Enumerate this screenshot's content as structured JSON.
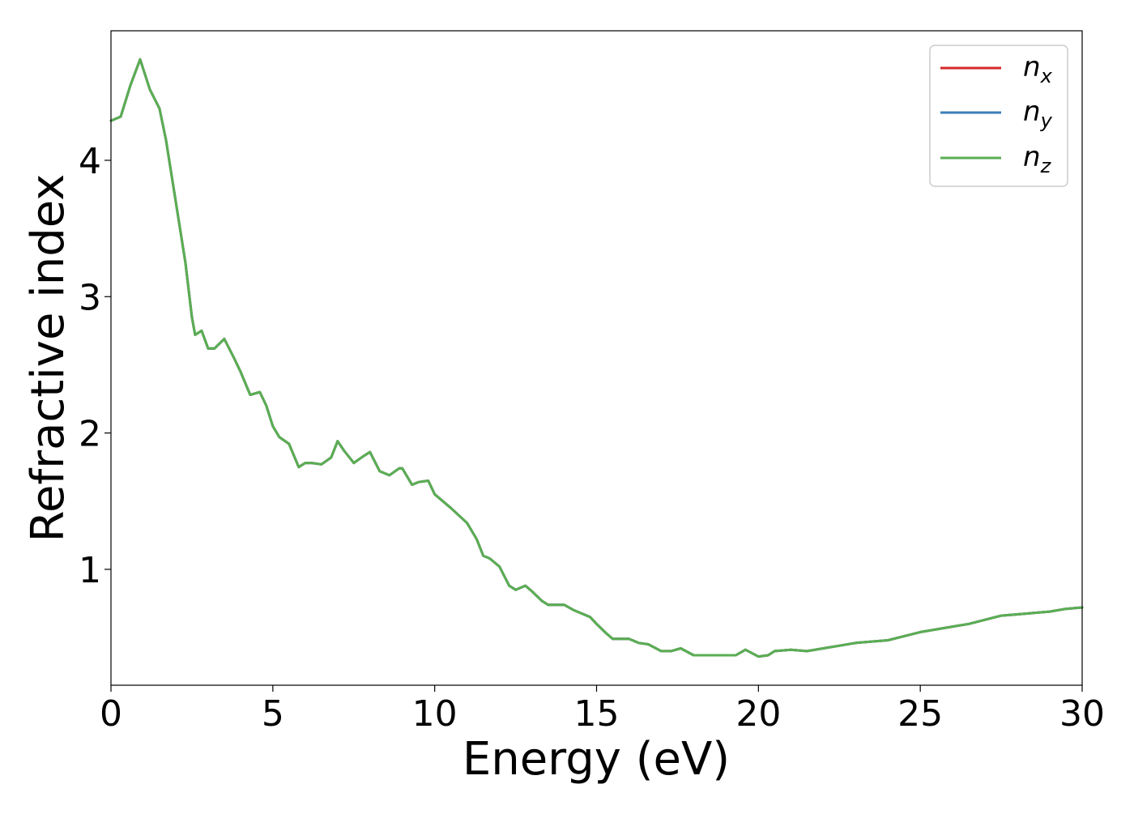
{
  "chart_data": {
    "type": "line",
    "xlabel": "Energy (eV)",
    "ylabel": "Refractive index",
    "xlim": [
      0,
      30
    ],
    "ylim": [
      0.15,
      4.95
    ],
    "xticks": [
      0,
      5,
      10,
      15,
      20,
      25,
      30
    ],
    "yticks": [
      1,
      2,
      3,
      4
    ],
    "grid": false,
    "legend": {
      "position": "top-right",
      "entries": [
        {
          "base": "n",
          "sub": "x"
        },
        {
          "base": "n",
          "sub": "y"
        },
        {
          "base": "n",
          "sub": "z"
        }
      ]
    },
    "x": [
      0,
      0.3,
      0.6,
      0.9,
      1.2,
      1.5,
      1.7,
      2.0,
      2.3,
      2.5,
      2.6,
      2.8,
      3.0,
      3.2,
      3.5,
      3.8,
      4.0,
      4.3,
      4.6,
      4.8,
      5.0,
      5.2,
      5.5,
      5.8,
      6.0,
      6.2,
      6.5,
      6.8,
      7.0,
      7.2,
      7.5,
      7.8,
      8.0,
      8.3,
      8.6,
      8.9,
      9.0,
      9.3,
      9.5,
      9.8,
      10.0,
      10.5,
      11.0,
      11.3,
      11.5,
      11.7,
      12.0,
      12.3,
      12.5,
      12.8,
      13.0,
      13.3,
      13.5,
      14.0,
      14.3,
      14.5,
      14.8,
      15.0,
      15.3,
      15.5,
      15.8,
      16.0,
      16.3,
      16.6,
      17.0,
      17.3,
      17.6,
      18.0,
      18.5,
      19.0,
      19.3,
      19.6,
      20.0,
      20.3,
      20.5,
      21.0,
      21.5,
      22.0,
      22.5,
      23.0,
      23.5,
      24.0,
      24.5,
      25.0,
      25.5,
      26.0,
      26.5,
      27.0,
      27.5,
      28.0,
      28.5,
      29.0,
      29.5,
      30.0
    ],
    "series": [
      {
        "name": "n_x",
        "color": "#d62728",
        "values": [
          4.29,
          4.32,
          4.55,
          4.74,
          4.52,
          4.38,
          4.15,
          3.7,
          3.25,
          2.85,
          2.72,
          2.75,
          2.62,
          2.62,
          2.69,
          2.55,
          2.45,
          2.28,
          2.3,
          2.2,
          2.05,
          1.97,
          1.92,
          1.75,
          1.78,
          1.78,
          1.77,
          1.82,
          1.94,
          1.87,
          1.78,
          1.83,
          1.86,
          1.72,
          1.69,
          1.74,
          1.74,
          1.62,
          1.64,
          1.65,
          1.55,
          1.45,
          1.34,
          1.22,
          1.1,
          1.08,
          1.02,
          0.88,
          0.85,
          0.88,
          0.84,
          0.77,
          0.74,
          0.74,
          0.7,
          0.68,
          0.65,
          0.6,
          0.53,
          0.49,
          0.49,
          0.49,
          0.46,
          0.45,
          0.4,
          0.4,
          0.42,
          0.37,
          0.37,
          0.37,
          0.37,
          0.41,
          0.36,
          0.37,
          0.4,
          0.41,
          0.4,
          0.42,
          0.44,
          0.46,
          0.47,
          0.48,
          0.51,
          0.54,
          0.56,
          0.58,
          0.6,
          0.63,
          0.66,
          0.67,
          0.68,
          0.69,
          0.71,
          0.72
        ]
      },
      {
        "name": "n_y",
        "color": "#3a7fb8",
        "values": [
          4.29,
          4.32,
          4.55,
          4.74,
          4.52,
          4.38,
          4.15,
          3.7,
          3.25,
          2.85,
          2.72,
          2.75,
          2.62,
          2.62,
          2.69,
          2.55,
          2.45,
          2.28,
          2.3,
          2.2,
          2.05,
          1.97,
          1.92,
          1.75,
          1.78,
          1.78,
          1.77,
          1.82,
          1.94,
          1.87,
          1.78,
          1.83,
          1.86,
          1.72,
          1.69,
          1.74,
          1.74,
          1.62,
          1.64,
          1.65,
          1.55,
          1.45,
          1.34,
          1.22,
          1.1,
          1.08,
          1.02,
          0.88,
          0.85,
          0.88,
          0.84,
          0.77,
          0.74,
          0.74,
          0.7,
          0.68,
          0.65,
          0.6,
          0.53,
          0.49,
          0.49,
          0.49,
          0.46,
          0.45,
          0.4,
          0.4,
          0.42,
          0.37,
          0.37,
          0.37,
          0.37,
          0.41,
          0.36,
          0.37,
          0.4,
          0.41,
          0.4,
          0.42,
          0.44,
          0.46,
          0.47,
          0.48,
          0.51,
          0.54,
          0.56,
          0.58,
          0.6,
          0.63,
          0.66,
          0.67,
          0.68,
          0.69,
          0.71,
          0.72
        ]
      },
      {
        "name": "n_z",
        "color": "#5aae52",
        "values": [
          4.29,
          4.32,
          4.55,
          4.74,
          4.52,
          4.38,
          4.15,
          3.7,
          3.25,
          2.85,
          2.72,
          2.75,
          2.62,
          2.62,
          2.69,
          2.55,
          2.45,
          2.28,
          2.3,
          2.2,
          2.05,
          1.97,
          1.92,
          1.75,
          1.78,
          1.78,
          1.77,
          1.82,
          1.94,
          1.87,
          1.78,
          1.83,
          1.86,
          1.72,
          1.69,
          1.74,
          1.74,
          1.62,
          1.64,
          1.65,
          1.55,
          1.45,
          1.34,
          1.22,
          1.1,
          1.08,
          1.02,
          0.88,
          0.85,
          0.88,
          0.84,
          0.77,
          0.74,
          0.74,
          0.7,
          0.68,
          0.65,
          0.6,
          0.53,
          0.49,
          0.49,
          0.49,
          0.46,
          0.45,
          0.4,
          0.4,
          0.42,
          0.37,
          0.37,
          0.37,
          0.37,
          0.41,
          0.36,
          0.37,
          0.4,
          0.41,
          0.4,
          0.42,
          0.44,
          0.46,
          0.47,
          0.48,
          0.51,
          0.54,
          0.56,
          0.58,
          0.6,
          0.63,
          0.66,
          0.67,
          0.68,
          0.69,
          0.71,
          0.72
        ]
      }
    ]
  }
}
